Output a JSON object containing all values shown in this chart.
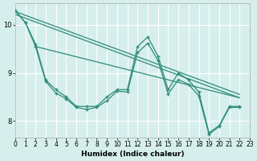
{
  "xlabel": "Humidex (Indice chaleur)",
  "bg_color": "#d6efed",
  "grid_color": "#ffffff",
  "line_color": "#2e8b7a",
  "xlim": [
    0,
    23
  ],
  "ylim": [
    7.65,
    10.45
  ],
  "xticks": [
    0,
    1,
    2,
    3,
    4,
    5,
    6,
    7,
    8,
    9,
    10,
    11,
    12,
    13,
    14,
    15,
    16,
    17,
    18,
    19,
    20,
    21,
    22,
    23
  ],
  "yticks": [
    8,
    9,
    10
  ],
  "line_lw": 0.9,
  "marker_size": 3.5,
  "series_with_markers": [
    {
      "x": [
        0,
        1,
        2,
        3,
        4,
        5,
        6,
        7,
        8,
        9,
        10,
        11,
        12,
        13,
        14,
        15,
        16,
        17,
        18,
        19,
        20,
        21,
        22
      ],
      "y": [
        10.3,
        10.05,
        9.6,
        8.85,
        8.65,
        8.5,
        8.3,
        8.3,
        8.3,
        8.5,
        8.65,
        8.65,
        9.55,
        9.75,
        9.35,
        8.65,
        9.0,
        8.85,
        8.6,
        7.75,
        7.9,
        8.3,
        8.3
      ]
    },
    {
      "x": [
        0,
        1,
        2,
        3,
        4,
        5,
        6,
        7,
        8,
        9,
        10,
        11,
        12,
        13,
        14,
        15,
        16,
        17,
        18,
        19,
        20,
        21,
        22
      ],
      "y": [
        10.3,
        10.05,
        9.55,
        8.82,
        8.58,
        8.46,
        8.28,
        8.24,
        8.28,
        8.42,
        8.62,
        8.6,
        9.42,
        9.62,
        9.26,
        8.56,
        8.86,
        8.76,
        8.52,
        7.72,
        7.88,
        8.28,
        8.28
      ]
    }
  ],
  "series_no_markers": [
    {
      "x": [
        0,
        22
      ],
      "y": [
        10.28,
        8.55
      ]
    },
    {
      "x": [
        0,
        22
      ],
      "y": [
        10.22,
        8.48
      ]
    },
    {
      "x": [
        2,
        22
      ],
      "y": [
        9.55,
        8.48
      ]
    }
  ]
}
